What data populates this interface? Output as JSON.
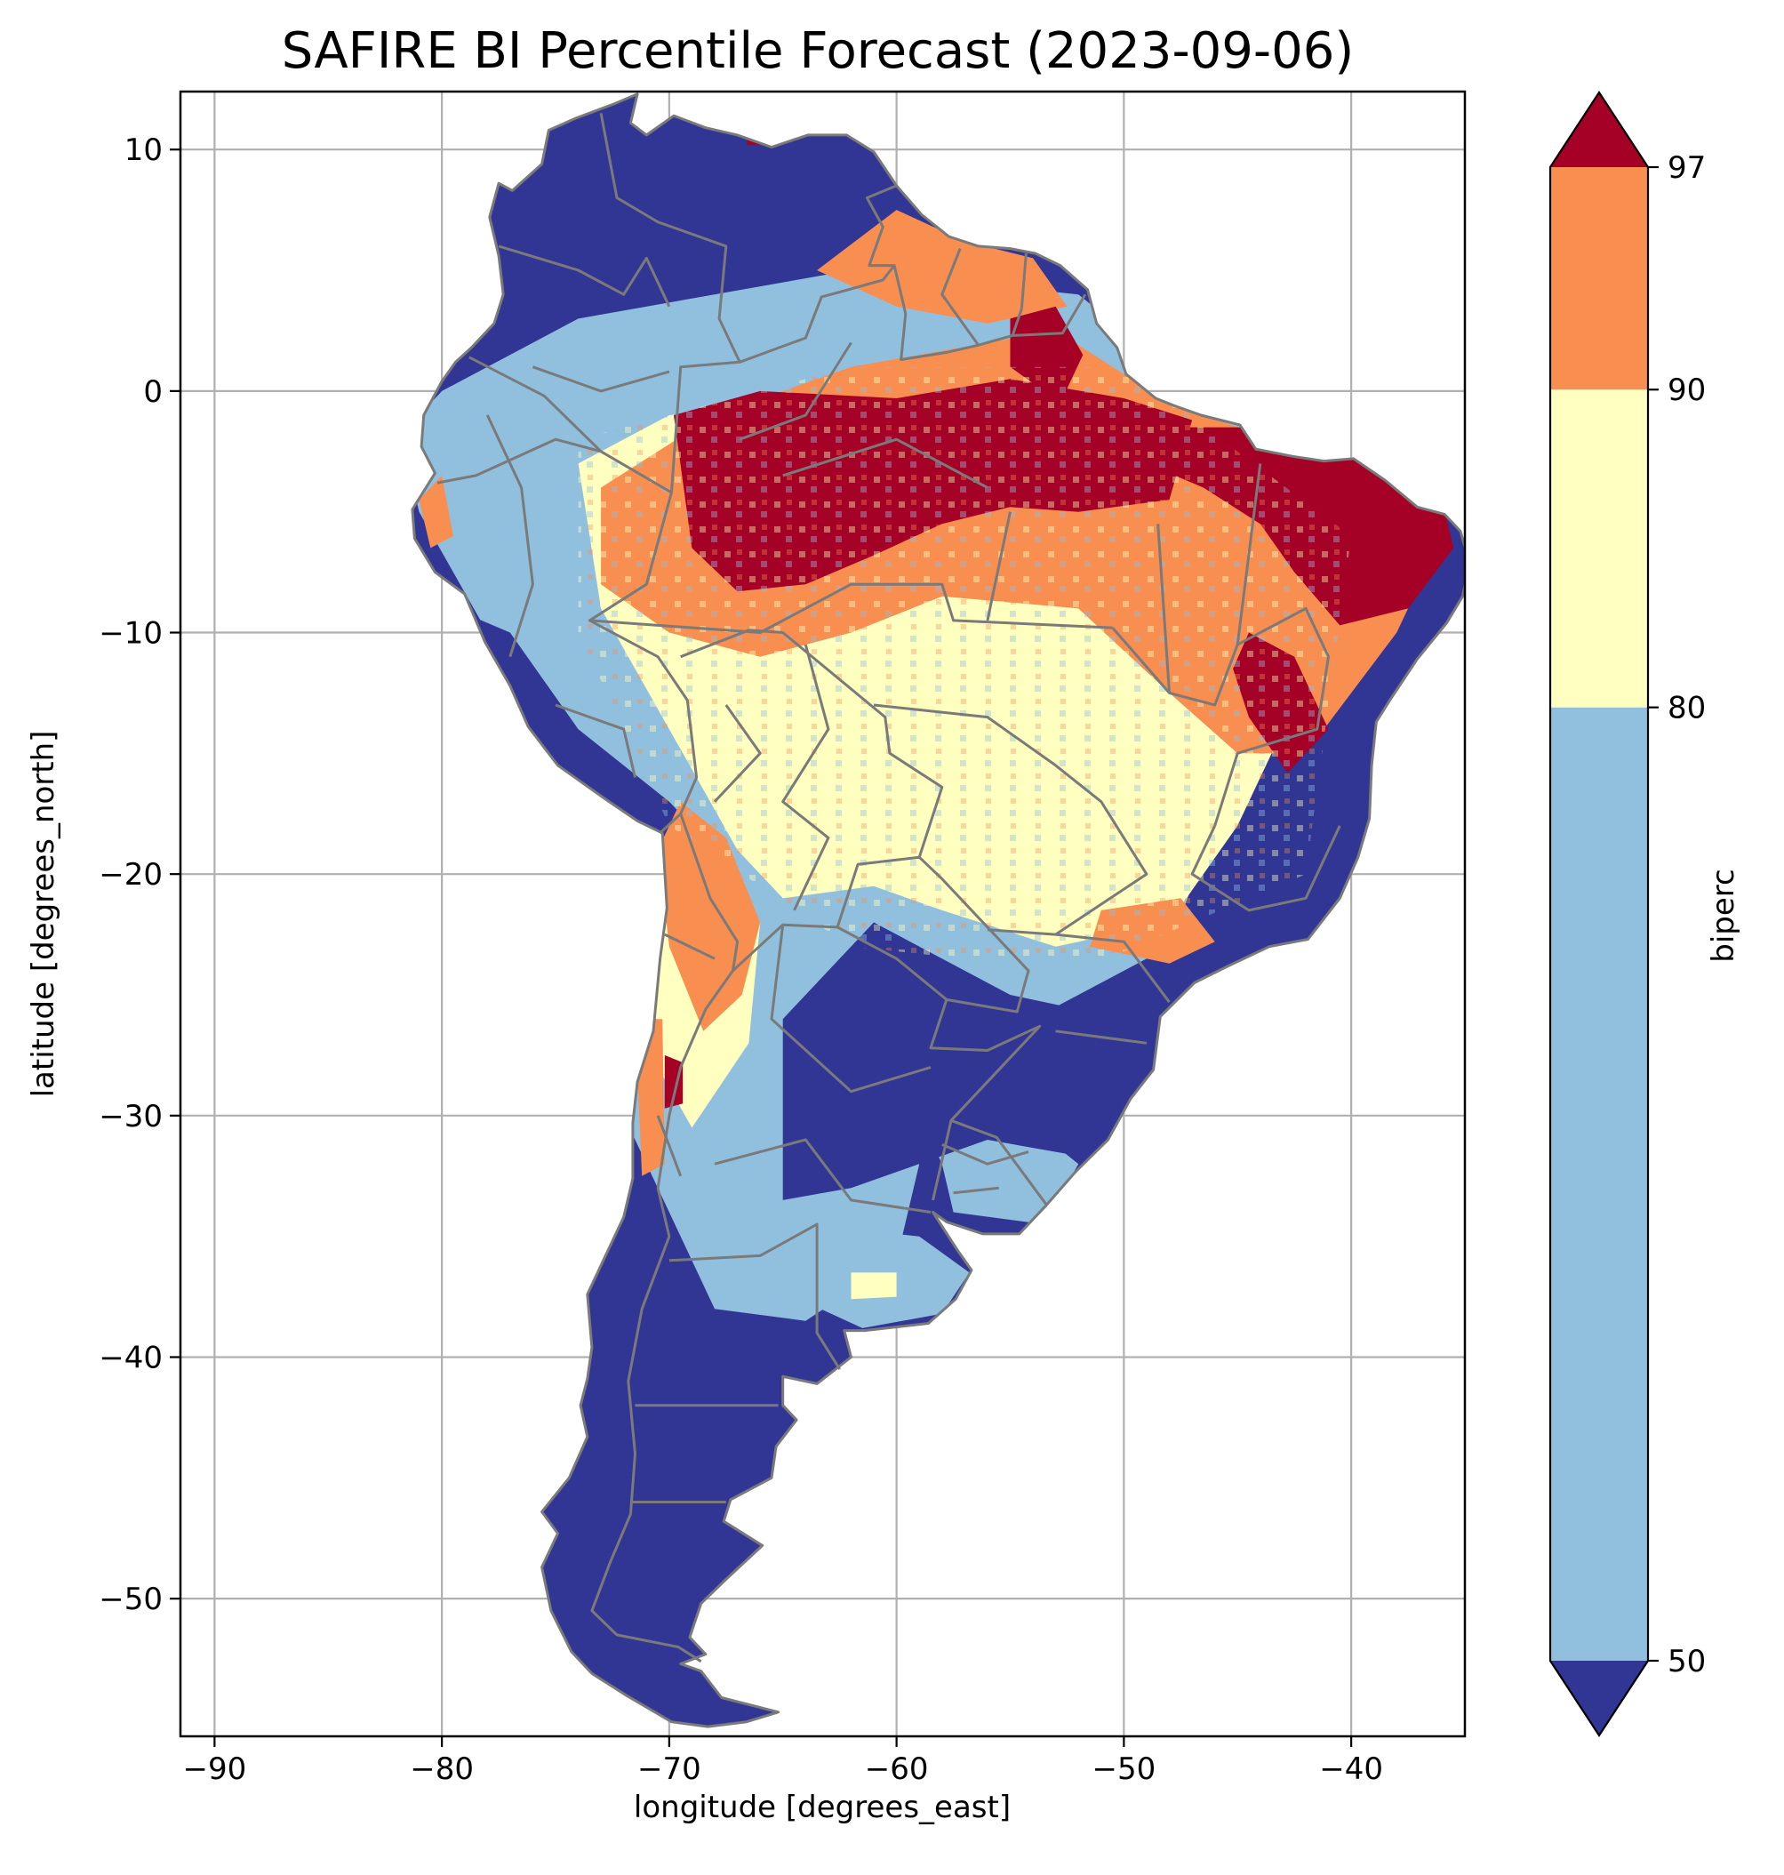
{
  "chart_data": {
    "type": "heatmap",
    "title": "SAFIRE BI Percentile Forecast (2023-09-06)",
    "xlabel": "longitude [degrees_east]",
    "ylabel": "latitude [degrees_north]",
    "xlim": [
      -91.5,
      -35
    ],
    "ylim": [
      -55.7,
      12.4
    ],
    "x_ticks": [
      -90,
      -80,
      -70,
      -60,
      -50,
      -40
    ],
    "x_tick_labels": [
      "−90",
      "−80",
      "−70",
      "−60",
      "−50",
      "−40"
    ],
    "y_ticks": [
      10,
      0,
      -10,
      -20,
      -30,
      -40,
      -50
    ],
    "y_tick_labels": [
      "10",
      "0",
      "−10",
      "−20",
      "−30",
      "−40",
      "−50"
    ],
    "grid": true,
    "colorbar": {
      "label": "biperc",
      "boundaries": [
        50,
        80,
        90,
        97
      ],
      "tick_labels": [
        "50",
        "80",
        "90",
        "97"
      ],
      "extend": "both",
      "colors": {
        "under_50": "#313695",
        "50_80": "#91c0de",
        "80_90": "#ffffc0",
        "90_97": "#f88e50",
        "over_97": "#a50026"
      }
    }
  }
}
